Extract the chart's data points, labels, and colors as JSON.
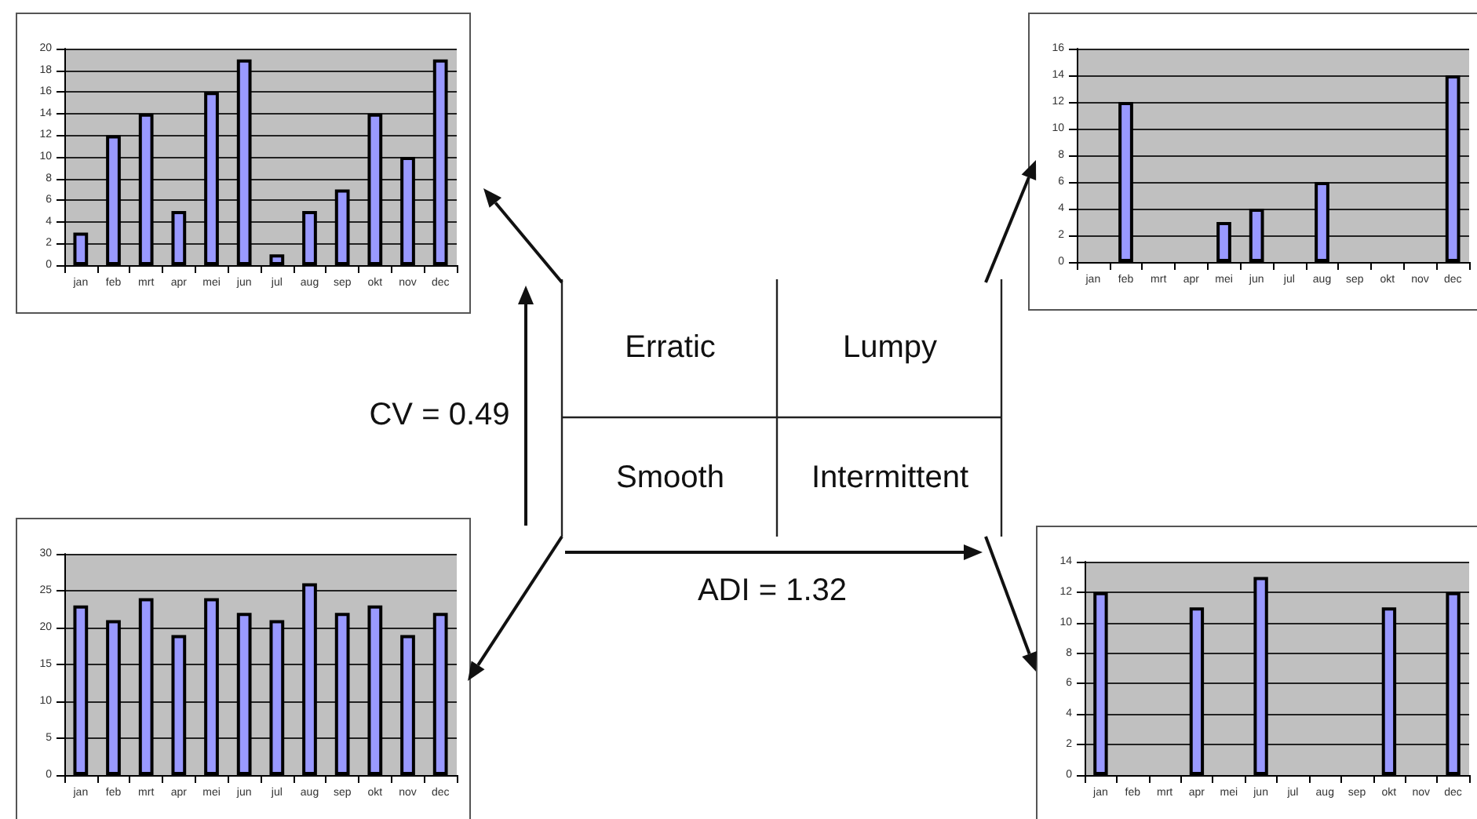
{
  "chart_data": [
    {
      "type": "bar",
      "categories": [
        "jan",
        "feb",
        "mrt",
        "apr",
        "mei",
        "jun",
        "jul",
        "aug",
        "sep",
        "okt",
        "nov",
        "dec"
      ],
      "values": [
        3,
        12,
        14,
        5,
        16,
        19,
        1,
        5,
        7,
        14,
        10,
        19
      ],
      "color": "#9999ff",
      "ylim": [
        0,
        20
      ],
      "yticks": [
        0,
        2,
        4,
        6,
        8,
        10,
        12,
        14,
        16,
        18,
        20
      ],
      "grid": "y"
    },
    {
      "type": "bar",
      "categories": [
        "jan",
        "feb",
        "mrt",
        "apr",
        "mei",
        "jun",
        "jul",
        "aug",
        "sep",
        "okt",
        "nov",
        "dec"
      ],
      "values": [
        null,
        12,
        null,
        null,
        3,
        4,
        null,
        6,
        null,
        null,
        null,
        14
      ],
      "color": "#9999ff",
      "ylim": [
        0,
        16
      ],
      "yticks": [
        0,
        2,
        4,
        6,
        8,
        10,
        12,
        14,
        16
      ],
      "grid": "y"
    },
    {
      "type": "other",
      "annotations": [
        "Erratic",
        "Lumpy",
        "Smooth",
        "Intermittent",
        "CV = 0.49",
        "ADI = 1.32"
      ]
    },
    {
      "type": "bar",
      "categories": [
        "jan",
        "feb",
        "mrt",
        "apr",
        "mei",
        "jun",
        "jul",
        "aug",
        "sep",
        "okt",
        "nov",
        "dec"
      ],
      "values": [
        23,
        21,
        24,
        19,
        24,
        22,
        21,
        26,
        22,
        23,
        19,
        22
      ],
      "color": "#9999ff",
      "ylim": [
        0,
        30
      ],
      "yticks": [
        0,
        5,
        10,
        15,
        20,
        25,
        30
      ],
      "grid": "y"
    },
    {
      "type": "bar",
      "categories": [
        "jan",
        "feb",
        "mrt",
        "apr",
        "mei",
        "jun",
        "jul",
        "aug",
        "sep",
        "okt",
        "nov",
        "dec"
      ],
      "values": [
        12,
        null,
        null,
        11,
        null,
        13,
        null,
        null,
        null,
        11,
        null,
        12
      ],
      "color": "#9999ff",
      "ylim": [
        0,
        14
      ],
      "yticks": [
        0,
        2,
        4,
        6,
        8,
        10,
        12,
        14
      ],
      "grid": "y"
    }
  ]
}
